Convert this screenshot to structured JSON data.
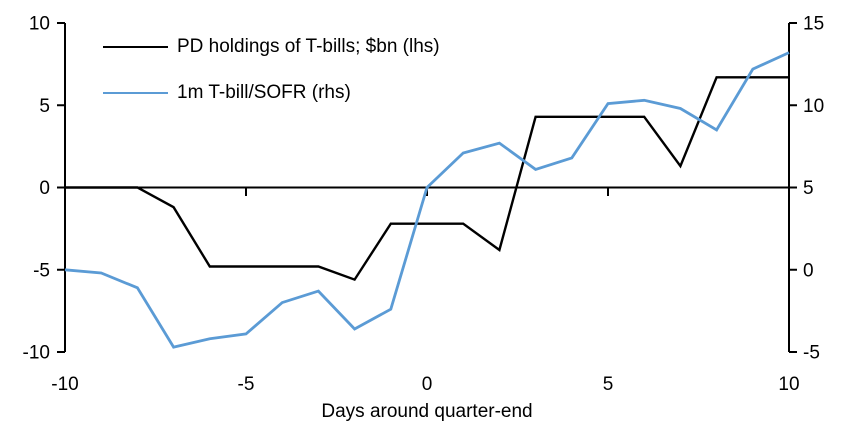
{
  "chart_data": {
    "type": "line",
    "title": "",
    "xlabel": "Days around quarter-end",
    "ylabel_left": "",
    "ylabel_right": "",
    "grid": false,
    "legend_position": "top-left",
    "x": [
      -10,
      -9,
      -8,
      -7,
      -6,
      -5,
      -4,
      -3,
      -2,
      -1,
      0,
      1,
      2,
      3,
      4,
      5,
      6,
      7,
      8,
      9,
      10
    ],
    "series": [
      {
        "name": "PD holdings of T-bills; $bn (lhs)",
        "axis": "left",
        "color": "#000000",
        "values": [
          0,
          0,
          0,
          -1.2,
          -4.8,
          -4.8,
          -4.8,
          -4.8,
          -5.6,
          -2.2,
          -2.2,
          -2.2,
          -3.8,
          4.3,
          4.3,
          4.3,
          4.3,
          1.3,
          6.7,
          6.7,
          6.7
        ]
      },
      {
        "name": "1m T-bill/SOFR (rhs)",
        "axis": "right",
        "color": "#5B9BD5",
        "values": [
          0.0,
          -0.2,
          -1.1,
          -4.7,
          -4.2,
          -3.9,
          -2.0,
          -1.3,
          -3.6,
          -2.4,
          5.0,
          7.1,
          7.7,
          6.1,
          6.8,
          10.1,
          10.3,
          9.8,
          8.5,
          12.2,
          13.2
        ]
      }
    ],
    "left_axis": {
      "range": [
        -10,
        10
      ],
      "ticks": [
        10,
        5,
        0,
        -5,
        -10
      ],
      "tick_labels": [
        "10",
        "5",
        "0",
        "-5",
        "-10"
      ]
    },
    "right_axis": {
      "range": [
        -5,
        15
      ],
      "ticks": [
        15,
        10,
        5,
        0,
        -5
      ],
      "tick_labels": [
        "15",
        "10",
        "5",
        "0",
        "-5"
      ]
    },
    "x_axis": {
      "range": [
        -10,
        10
      ],
      "ticks": [
        -10,
        -5,
        0,
        5,
        10
      ],
      "tick_labels": [
        "-10",
        "-5",
        "0",
        "5",
        "10"
      ],
      "inner_ticks": [
        -5,
        0,
        5
      ]
    },
    "axis_color": "#000000",
    "background_color": "#ffffff"
  },
  "legend": {
    "items": [
      {
        "label": "PD holdings of T-bills; $bn (lhs)",
        "color": "#000000"
      },
      {
        "label": "1m T-bill/SOFR (rhs)",
        "color": "#5B9BD5"
      }
    ]
  }
}
